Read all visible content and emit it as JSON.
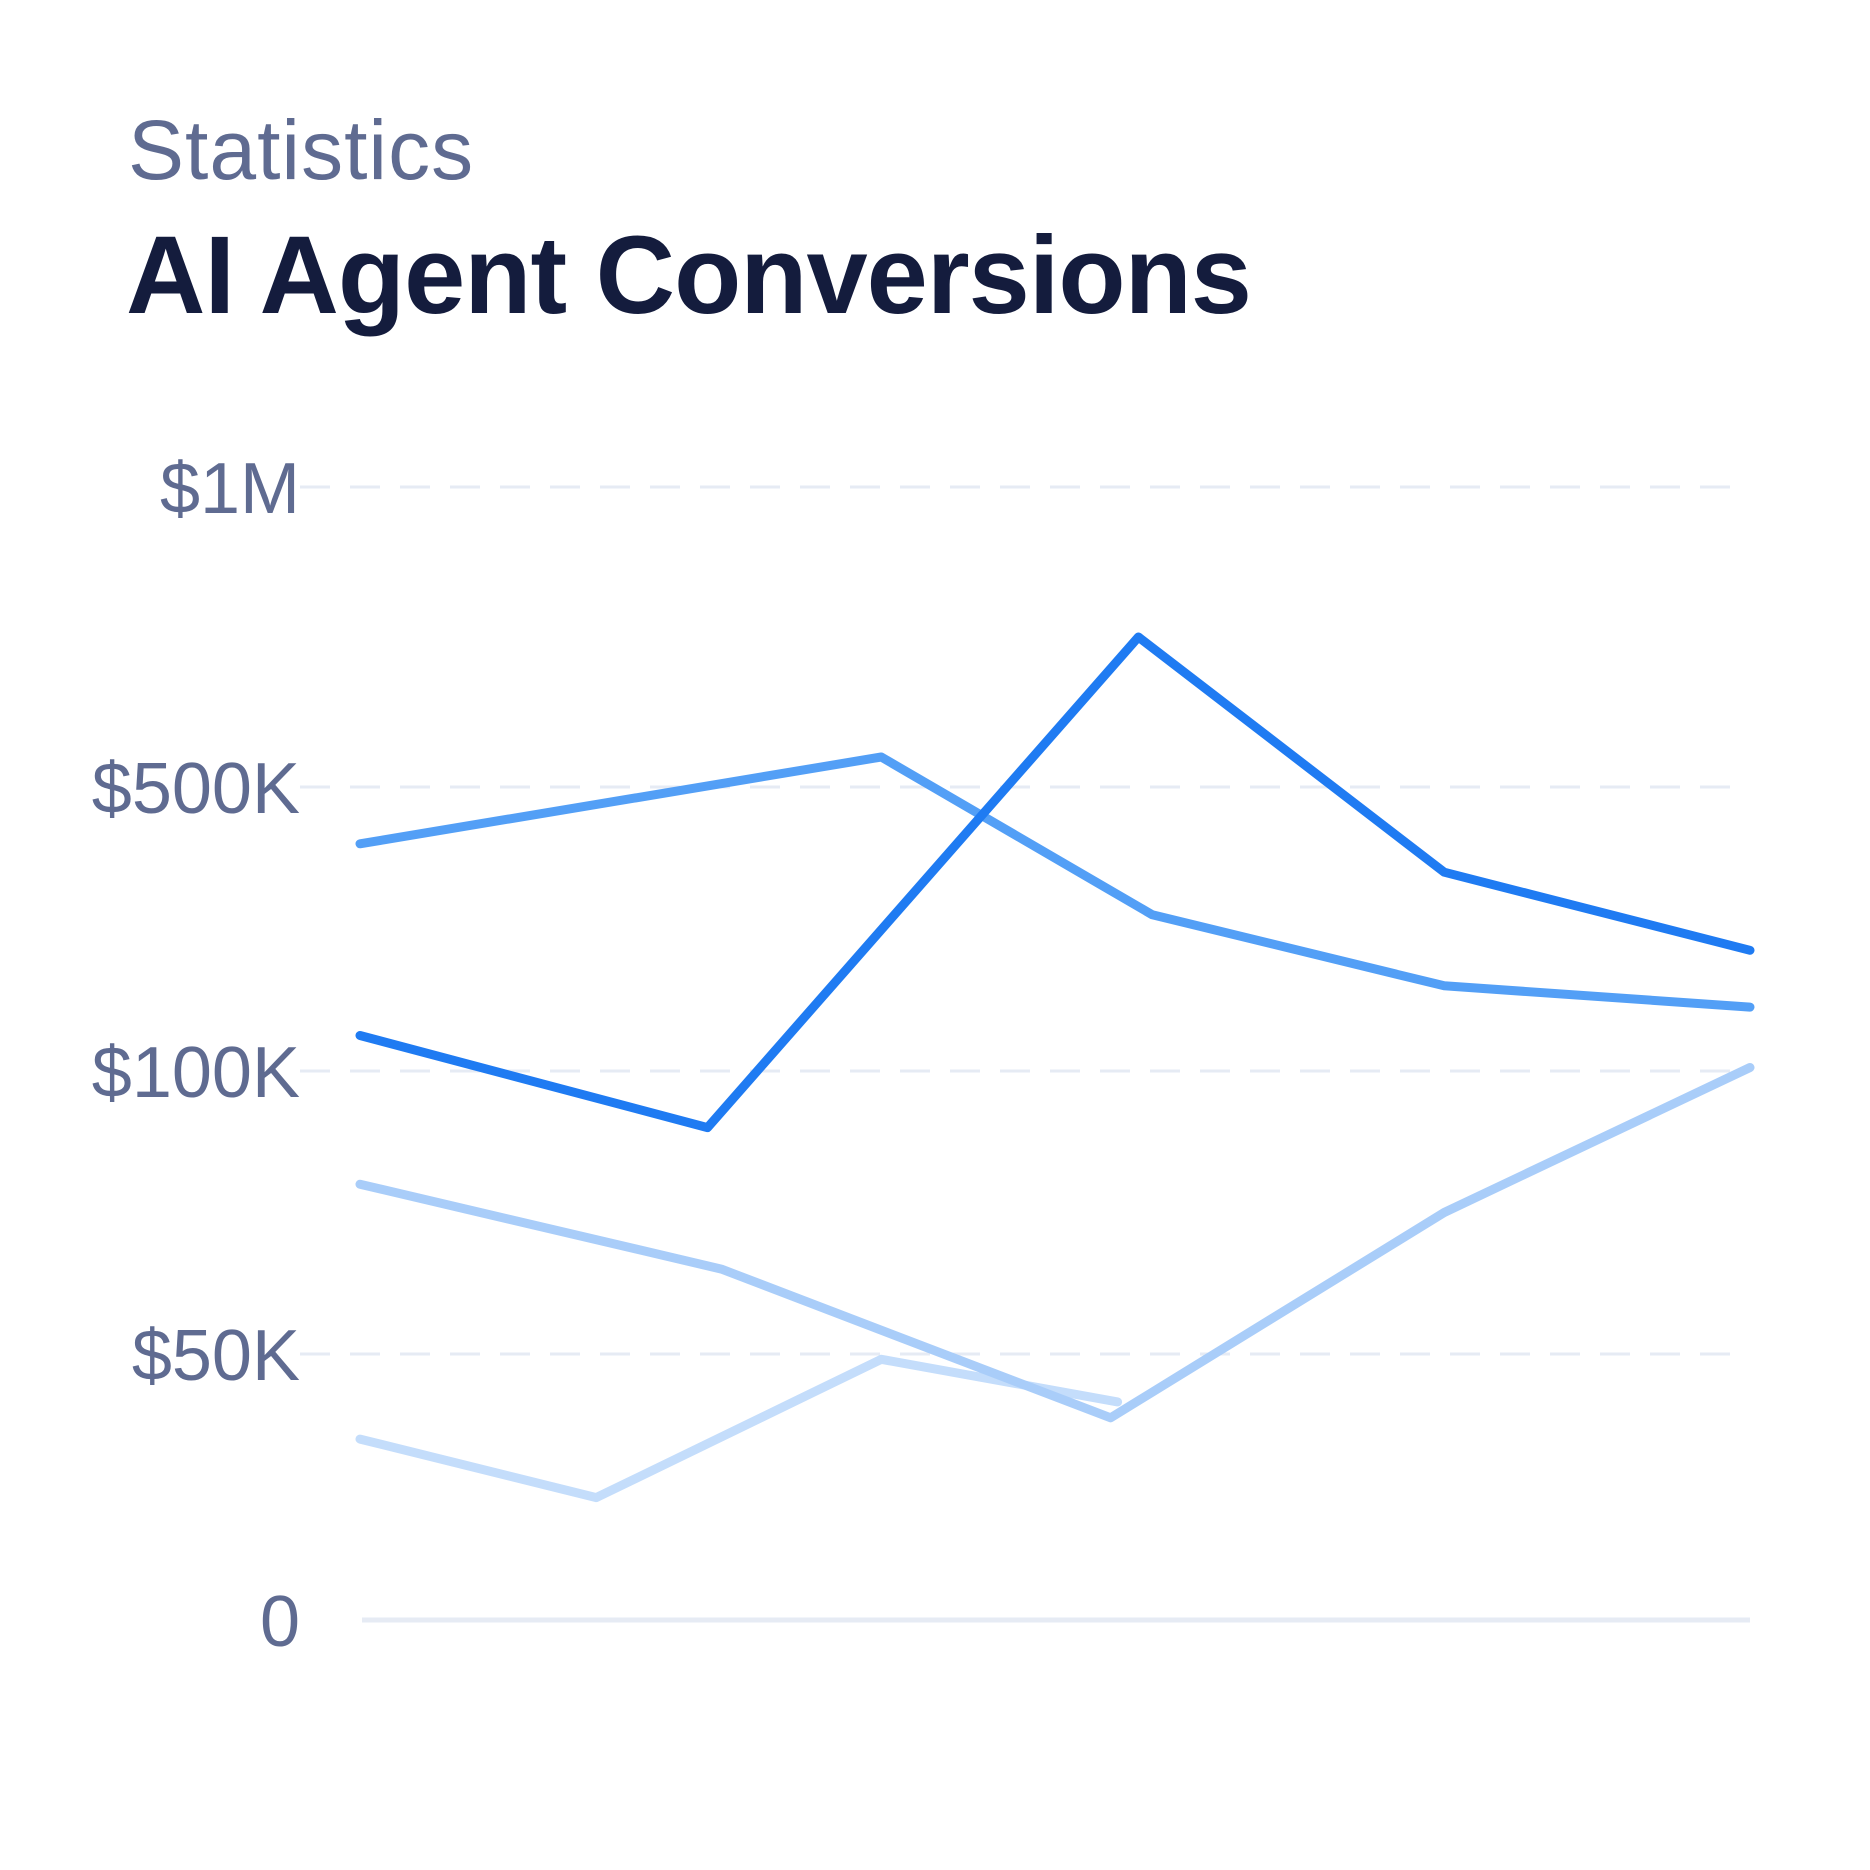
{
  "header": {
    "eyebrow": "Statistics",
    "title": "AI Agent Conversions"
  },
  "chart_data": {
    "type": "line",
    "y_ticks": [
      {
        "label": "$1M",
        "value": 1000000
      },
      {
        "label": "$500K",
        "value": 500000
      },
      {
        "label": "$100K",
        "value": 100000
      },
      {
        "label": "$50K",
        "value": 50000
      },
      {
        "label": "0",
        "value": 0
      }
    ],
    "y_scale": "nonlinear, follows tick labels",
    "grid": true,
    "legend": "none",
    "series": [
      {
        "color": "#1f7bf2",
        "opacity": 1.0,
        "points": [
          [
            0,
            150000
          ],
          [
            1,
            90000
          ],
          [
            2,
            750000
          ],
          [
            3,
            380000
          ],
          [
            4,
            270000
          ]
        ]
      },
      {
        "color": "#4a9af5",
        "opacity": 0.95,
        "points": [
          [
            0,
            420000
          ],
          [
            1,
            550000
          ],
          [
            2,
            320000
          ],
          [
            3,
            220000
          ],
          [
            4,
            190000
          ]
        ]
      },
      {
        "color": "#a9cdf9",
        "opacity": 1.0,
        "points": [
          [
            0,
            80000
          ],
          [
            1,
            65000
          ],
          [
            2,
            38000
          ],
          [
            3,
            75000
          ],
          [
            4,
            105000
          ]
        ]
      },
      {
        "color": "#c4ddfb",
        "opacity": 1.0,
        "points": [
          [
            0,
            34000
          ],
          [
            1,
            23000
          ],
          [
            2,
            49000
          ],
          [
            3,
            41000
          ]
        ]
      }
    ],
    "series_x_positions": [
      [
        0,
        0.25,
        0.56,
        0.78,
        1.0
      ],
      [
        0,
        0.375,
        0.57,
        0.78,
        1.0
      ],
      [
        0,
        0.26,
        0.54,
        0.78,
        1.0
      ],
      [
        0,
        0.17,
        0.375,
        0.545
      ]
    ]
  },
  "colors": {
    "grid": "#e6ebf4",
    "axis_label": "#5f6b91",
    "title": "#141c3d"
  }
}
